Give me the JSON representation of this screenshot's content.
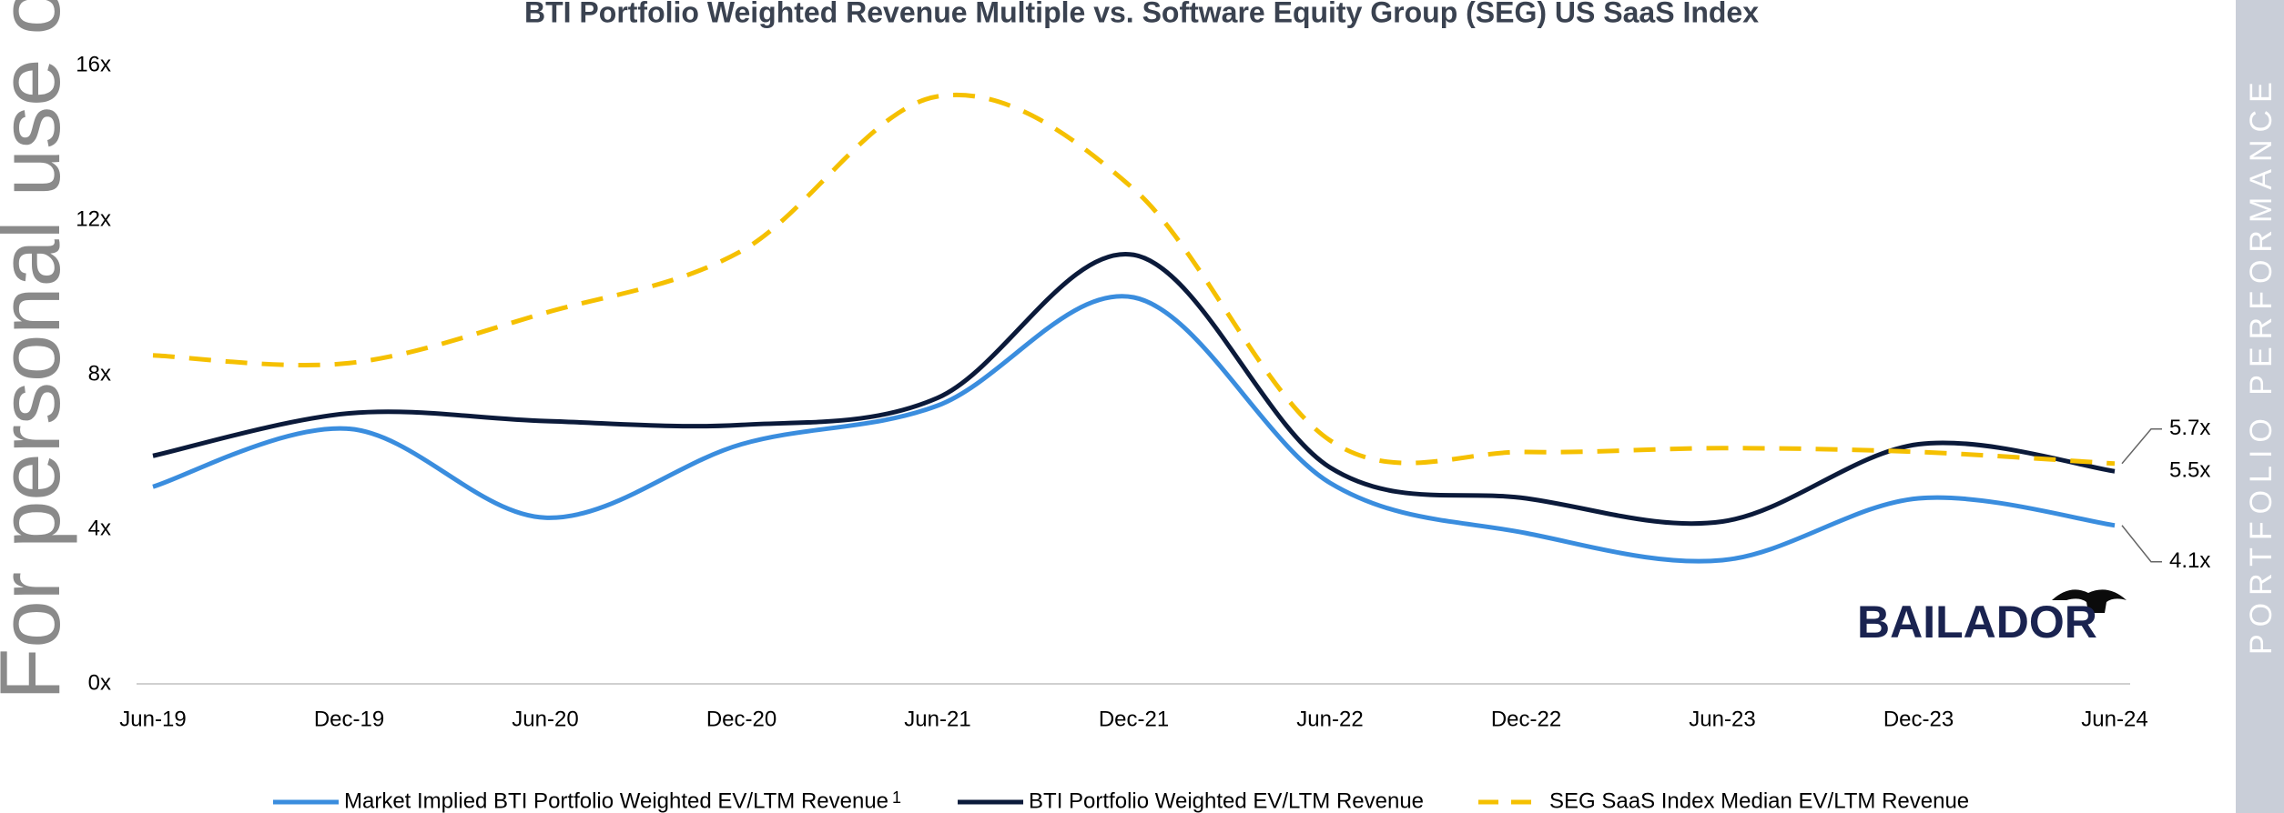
{
  "chart_data": {
    "type": "line",
    "title": "BTI Portfolio Weighted Revenue Multiple vs. Software Equity Group (SEG) US SaaS Index",
    "categories": [
      "Jun-19",
      "Dec-19",
      "Jun-20",
      "Dec-20",
      "Jun-21",
      "Dec-21",
      "Jun-22",
      "Dec-22",
      "Jun-23",
      "Dec-23",
      "Jun-24"
    ],
    "series": [
      {
        "name": "Market Implied BTI Portfolio Weighted EV/LTM Revenue",
        "footnote_marker": "1",
        "color": "#3a8dde",
        "dashed": false,
        "values": [
          5.1,
          6.6,
          4.3,
          6.2,
          7.2,
          10.0,
          5.2,
          3.9,
          3.2,
          4.8,
          4.1
        ],
        "value_labels": [
          null,
          null,
          null,
          null,
          null,
          null,
          null,
          null,
          null,
          null,
          "4.1x"
        ]
      },
      {
        "name": "BTI Portfolio Weighted EV/LTM Revenue",
        "color": "#0b1a3a",
        "dashed": false,
        "values": [
          5.9,
          7.0,
          6.8,
          6.7,
          7.4,
          11.1,
          5.6,
          4.8,
          4.2,
          6.2,
          5.5
        ],
        "value_labels": [
          null,
          null,
          null,
          null,
          null,
          null,
          null,
          null,
          null,
          null,
          "5.5x"
        ]
      },
      {
        "name": "SEG SaaS Index Median EV/LTM Revenue",
        "color": "#f5c000",
        "dashed": true,
        "values": [
          8.5,
          8.3,
          9.6,
          11.2,
          15.2,
          12.8,
          6.3,
          6.0,
          6.1,
          6.0,
          5.7
        ],
        "value_labels": [
          null,
          null,
          null,
          null,
          null,
          null,
          null,
          null,
          null,
          null,
          "5.7x"
        ]
      }
    ],
    "ylim": [
      0,
      16
    ],
    "yticks": [
      {
        "value": 0,
        "label": "0x"
      },
      {
        "value": 4,
        "label": "4x"
      },
      {
        "value": 8,
        "label": "8x"
      },
      {
        "value": 12,
        "label": "12x"
      },
      {
        "value": 16,
        "label": "16x"
      }
    ],
    "grid": false,
    "legend": "bottom"
  },
  "watermark": "For personal use only",
  "side_banner": "PORTFOLIO PERFORMANCE",
  "logo": "BAILADOR"
}
